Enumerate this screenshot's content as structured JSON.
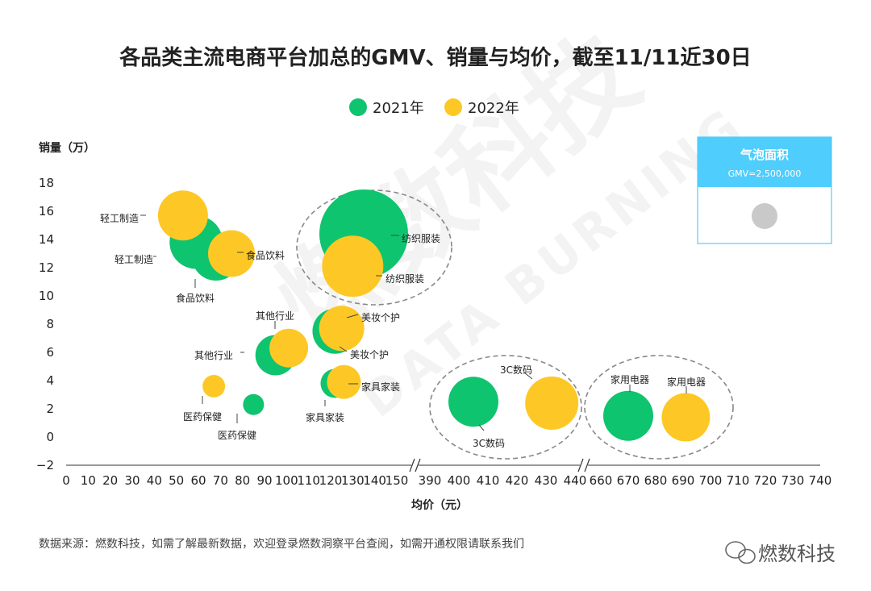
{
  "chart_data": {
    "type": "scatter",
    "title": "各品类主流电商平台加总的GMV、销量与均价，截至11/11近30日",
    "ylabel": "销量（万）",
    "xlabel": "均价（元）",
    "ylim": [
      -2,
      18
    ],
    "yticks": [
      "18",
      "16",
      "14",
      "12",
      "10",
      "8",
      "6",
      "4",
      "2",
      "0",
      "−2"
    ],
    "x_segments": [
      {
        "range": [
          0,
          150
        ],
        "ticks": [
          "0",
          "10",
          "20",
          "30",
          "40",
          "50",
          "60",
          "70",
          "80",
          "90",
          "100",
          "110",
          "120",
          "130",
          "140",
          "150"
        ]
      },
      {
        "range": [
          390,
          440
        ],
        "ticks": [
          "390",
          "400",
          "410",
          "420",
          "430",
          "440"
        ]
      },
      {
        "range": [
          660,
          740
        ],
        "ticks": [
          "660",
          "670",
          "680",
          "690",
          "700",
          "710",
          "720",
          "730",
          "740"
        ]
      }
    ],
    "legend_position": "top",
    "series": [
      {
        "name": "2021年",
        "color": "#0ec46f",
        "points": [
          {
            "label": "轻工制造",
            "x": 59,
            "y": 13.8
          },
          {
            "label": "食品饮料",
            "x": 68,
            "y": 12.8
          },
          {
            "label": "纺织服装",
            "x": 135,
            "y": 14.4
          },
          {
            "label": "美妆个护",
            "x": 122,
            "y": 7.5
          },
          {
            "label": "其他行业",
            "x": 95,
            "y": 5.8
          },
          {
            "label": "家具家装",
            "x": 122,
            "y": 3.8
          },
          {
            "label": "医药保健",
            "x": 85,
            "y": 2.3
          },
          {
            "label": "3C数码",
            "x": 405,
            "y": 2.5
          },
          {
            "label": "家用电器",
            "x": 670,
            "y": 1.5
          }
        ]
      },
      {
        "name": "2022年",
        "color": "#fdc825",
        "points": [
          {
            "label": "轻工制造",
            "x": 53,
            "y": 15.7
          },
          {
            "label": "食品饮料",
            "x": 75,
            "y": 13.0
          },
          {
            "label": "纺织服装",
            "x": 130,
            "y": 12.1
          },
          {
            "label": "美妆个护",
            "x": 125,
            "y": 7.7
          },
          {
            "label": "其他行业",
            "x": 101,
            "y": 6.3
          },
          {
            "label": "家具家装",
            "x": 126,
            "y": 3.9
          },
          {
            "label": "医药保健",
            "x": 67,
            "y": 3.6
          },
          {
            "label": "3C数码",
            "x": 432,
            "y": 2.4
          },
          {
            "label": "家用电器",
            "x": 691,
            "y": 1.4
          }
        ]
      }
    ],
    "bubble_legend": {
      "title": "气泡面积",
      "subtitle": "GMV=2,500,000"
    },
    "footer": "数据来源：燃数科技，如需了解最新数据，欢迎登录燃数洞察平台查阅，如需开通权限请联系我们",
    "brand": "燃数科技",
    "watermark": "燃数科技",
    "watermark_en": "DATA BURNING",
    "colors": {
      "green": "#0ec46f",
      "yellow": "#fdc825",
      "legend_header": "#4fcdfc",
      "reference_bubble": "#c9c9c9"
    }
  }
}
